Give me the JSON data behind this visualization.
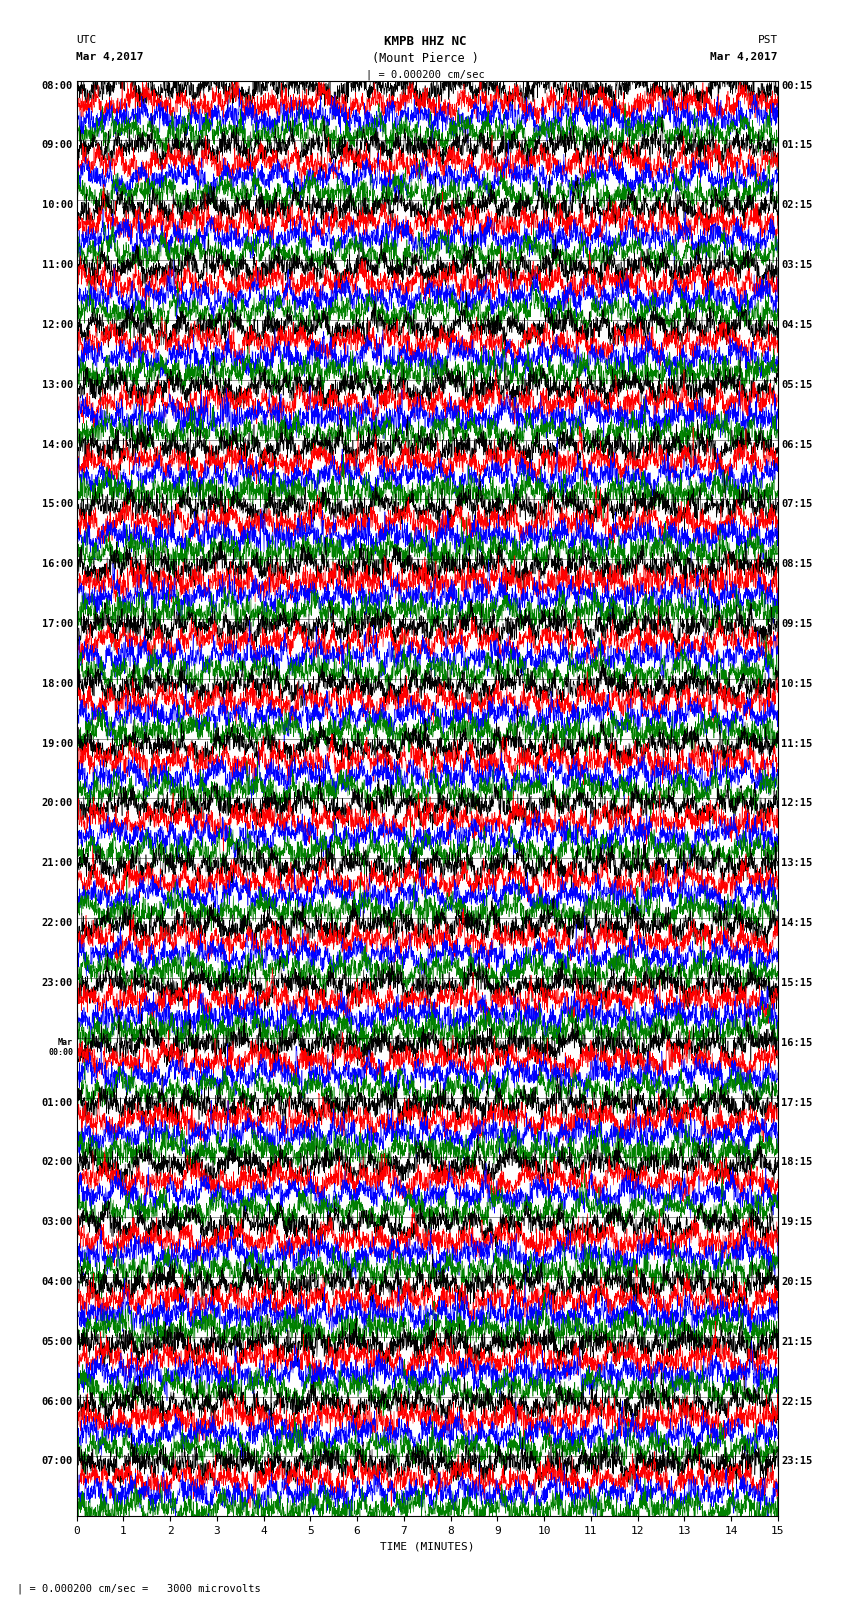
{
  "title_line1": "KMPB HHZ NC",
  "title_line2": "(Mount Pierce )",
  "scale_label": "| = 0.000200 cm/sec",
  "left_header_line1": "UTC",
  "left_header_line2": "Mar 4,2017",
  "right_header_line1": "PST",
  "right_header_line2": "Mar 4,2017",
  "bottom_label": "TIME (MINUTES)",
  "bottom_note": "| = 0.000200 cm/sec =   3000 microvolts",
  "x_ticks": [
    0,
    1,
    2,
    3,
    4,
    5,
    6,
    7,
    8,
    9,
    10,
    11,
    12,
    13,
    14,
    15
  ],
  "colors": [
    "black",
    "red",
    "blue",
    "green"
  ],
  "utc_labels": [
    "08:00",
    "09:00",
    "10:00",
    "11:00",
    "12:00",
    "13:00",
    "14:00",
    "15:00",
    "16:00",
    "17:00",
    "18:00",
    "19:00",
    "20:00",
    "21:00",
    "22:00",
    "23:00",
    "Mar\n00:00",
    "01:00",
    "02:00",
    "03:00",
    "04:00",
    "05:00",
    "06:00",
    "07:00"
  ],
  "pst_labels": [
    "00:15",
    "01:15",
    "02:15",
    "03:15",
    "04:15",
    "05:15",
    "06:15",
    "07:15",
    "08:15",
    "09:15",
    "10:15",
    "11:15",
    "12:15",
    "13:15",
    "14:15",
    "15:15",
    "16:15",
    "17:15",
    "18:15",
    "19:15",
    "20:15",
    "21:15",
    "22:15",
    "23:15"
  ],
  "n_rows": 24,
  "traces_per_row": 4,
  "x_min": 0,
  "x_max": 15,
  "bg_color": "white",
  "noise_seed": 42,
  "fig_width": 8.5,
  "fig_height": 16.13,
  "dpi": 100
}
